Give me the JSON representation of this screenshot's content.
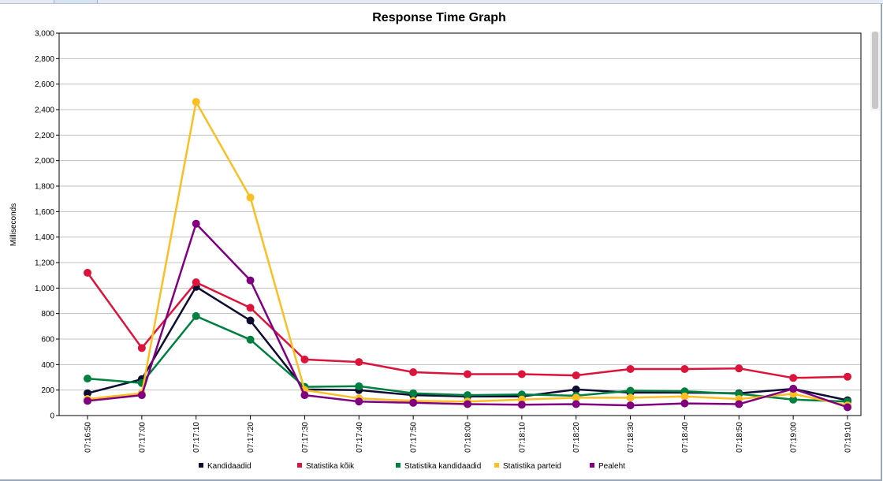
{
  "chart_data": {
    "type": "line",
    "title": "Response Time Graph",
    "xlabel": "",
    "ylabel": "Milliseconds",
    "ylim": [
      0,
      3000
    ],
    "yticks": [
      "0",
      "200",
      "400",
      "600",
      "800",
      "1,000",
      "1,200",
      "1,400",
      "1,600",
      "1,800",
      "2,000",
      "2,200",
      "2,400",
      "2,600",
      "2,800",
      "3,000"
    ],
    "categories": [
      "07:16:50",
      "07:17:00",
      "07:17:10",
      "07:17:20",
      "07:17:30",
      "07:17:40",
      "07:17:50",
      "07:18:00",
      "07:18:10",
      "07:18:20",
      "07:18:30",
      "07:18:40",
      "07:18:50",
      "07:19:00",
      "07:19:10"
    ],
    "grid": true,
    "legend_position": "bottom",
    "series": [
      {
        "name": "Kandidaadid",
        "color": "#0d0d33",
        "values": [
          175,
          285,
          1010,
          745,
          205,
          200,
          160,
          150,
          150,
          205,
          180,
          180,
          175,
          210,
          120
        ]
      },
      {
        "name": "Statistika kõik",
        "color": "#dc143c",
        "values": [
          1120,
          530,
          1045,
          845,
          440,
          420,
          340,
          325,
          325,
          315,
          365,
          365,
          370,
          295,
          305
        ]
      },
      {
        "name": "Statistika kandidaadid",
        "color": "#008040",
        "values": [
          290,
          255,
          780,
          595,
          225,
          230,
          175,
          160,
          165,
          155,
          195,
          190,
          170,
          125,
          110
        ]
      },
      {
        "name": "Statistika parteid",
        "color": "#fbbf24",
        "values": [
          130,
          175,
          2460,
          1710,
          200,
          135,
          115,
          110,
          125,
          140,
          140,
          150,
          130,
          170,
          80
        ]
      },
      {
        "name": "Pealeht",
        "color": "#800080",
        "values": [
          115,
          160,
          1505,
          1060,
          160,
          110,
          100,
          90,
          85,
          90,
          80,
          95,
          90,
          210,
          65
        ]
      }
    ]
  }
}
